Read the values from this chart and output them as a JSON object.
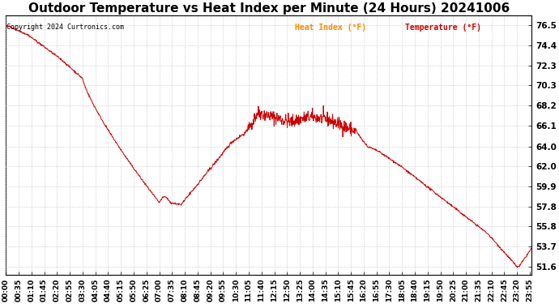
{
  "title": "Outdoor Temperature vs Heat Index per Minute (24 Hours) 20241006",
  "copyright_text": "Copyright 2024 Curtronics.com",
  "legend_heat_index": "Heat Index (°F)",
  "legend_temperature": "Temperature (°F)",
  "line_color": "#cc0000",
  "background_color": "#ffffff",
  "grid_color": "#bbbbbb",
  "title_fontsize": 11,
  "yticks": [
    51.6,
    53.7,
    55.8,
    57.8,
    59.9,
    62.0,
    64.0,
    66.1,
    68.2,
    70.3,
    72.3,
    74.4,
    76.5
  ],
  "ylim": [
    50.8,
    77.5
  ],
  "xlabel_fontsize": 6.5,
  "ylabel_fontsize": 7.5,
  "x_tick_interval_minutes": 35
}
